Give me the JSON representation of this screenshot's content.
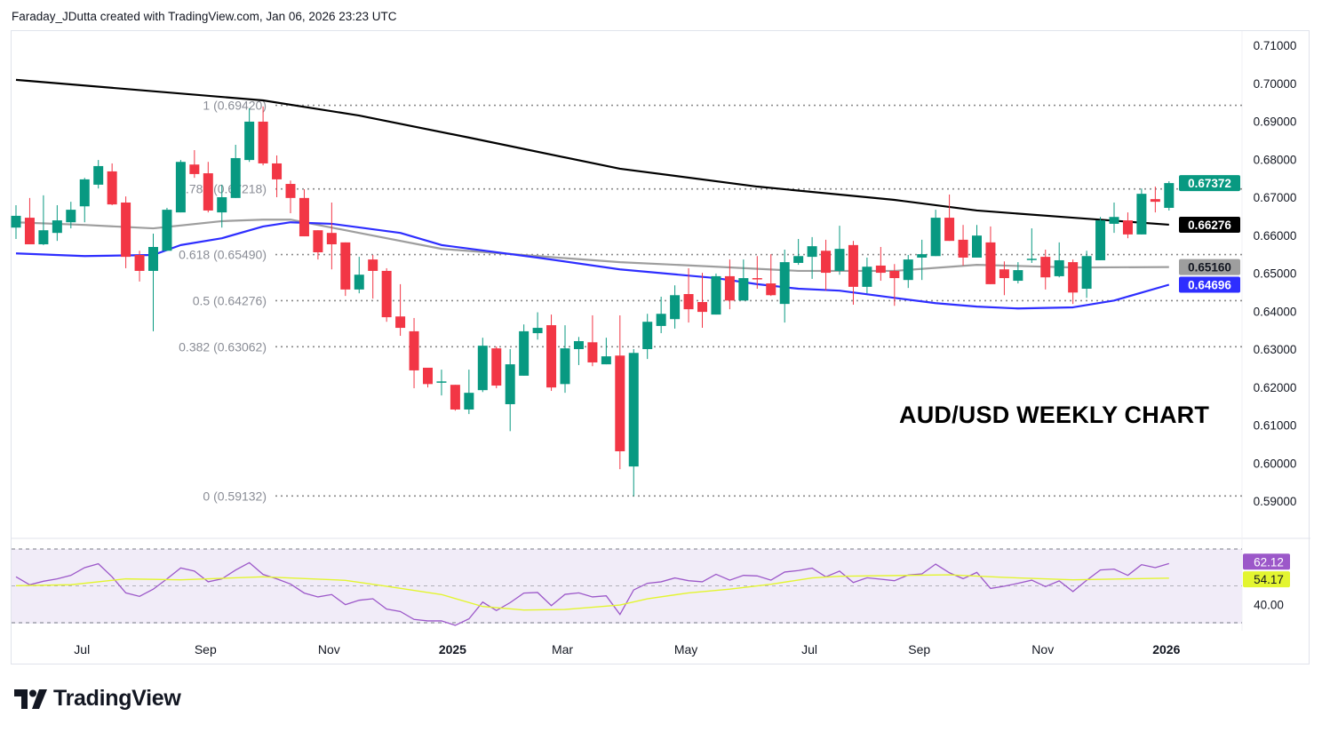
{
  "header": {
    "attribution": "Faraday_JDutta created with TradingView.com, Jan 06, 2026 23:23 UTC"
  },
  "brand": {
    "name": "TradingView"
  },
  "chart_data": {
    "type": "candlestick",
    "title": "AUD/USD WEEKLY CHART",
    "colors": {
      "up": "#089981",
      "down": "#f23645",
      "ma_long": "#000000",
      "ma_mid": "#9e9e9e",
      "ma_short": "#2e2eff",
      "rsi": "#9c58c9",
      "rsi_ma": "#e3f530",
      "rsi_bg": "#f1ecf8"
    },
    "ylim": [
      0.585,
      0.713
    ],
    "y_ticks": [
      "0.71000",
      "0.70000",
      "0.69000",
      "0.68000",
      "0.67000",
      "0.66000",
      "0.65000",
      "0.64000",
      "0.63000",
      "0.62000",
      "0.61000",
      "0.60000",
      "0.59000"
    ],
    "x_ticks": [
      {
        "label": "Jul",
        "date": "2024-07-01",
        "bold": false
      },
      {
        "label": "Sep",
        "date": "2024-09-02",
        "bold": false
      },
      {
        "label": "Nov",
        "date": "2024-11-04",
        "bold": false
      },
      {
        "label": "2025",
        "date": "2025-01-06",
        "bold": true
      },
      {
        "label": "Mar",
        "date": "2025-03-03",
        "bold": false
      },
      {
        "label": "May",
        "date": "2025-05-05",
        "bold": false
      },
      {
        "label": "Jul",
        "date": "2025-07-07",
        "bold": false
      },
      {
        "label": "Sep",
        "date": "2025-09-01",
        "bold": false
      },
      {
        "label": "Nov",
        "date": "2025-11-03",
        "bold": false
      },
      {
        "label": "2026",
        "date": "2026-01-05",
        "bold": true
      }
    ],
    "candles_columns": [
      "date",
      "open",
      "high",
      "low",
      "close"
    ],
    "candles": [
      [
        "2024-05-27",
        0.662,
        0.6679,
        0.659,
        0.6651
      ],
      [
        "2024-06-03",
        0.6646,
        0.6698,
        0.6576,
        0.6576
      ],
      [
        "2024-06-10",
        0.6576,
        0.6705,
        0.6574,
        0.6613
      ],
      [
        "2024-06-17",
        0.6606,
        0.6679,
        0.6585,
        0.6639
      ],
      [
        "2024-06-24",
        0.6634,
        0.6688,
        0.6618,
        0.6667
      ],
      [
        "2024-07-01",
        0.6676,
        0.6751,
        0.6634,
        0.6747
      ],
      [
        "2024-07-08",
        0.6733,
        0.6798,
        0.6723,
        0.6782
      ],
      [
        "2024-07-15",
        0.6768,
        0.6789,
        0.6679,
        0.6681
      ],
      [
        "2024-07-22",
        0.6686,
        0.6702,
        0.6513,
        0.6543
      ],
      [
        "2024-07-29",
        0.6548,
        0.6559,
        0.6478,
        0.6506
      ],
      [
        "2024-08-05",
        0.6506,
        0.6604,
        0.6347,
        0.6569
      ],
      [
        "2024-08-12",
        0.6559,
        0.6672,
        0.6559,
        0.6667
      ],
      [
        "2024-08-19",
        0.666,
        0.6798,
        0.666,
        0.6793
      ],
      [
        "2024-08-26",
        0.6786,
        0.6824,
        0.6751,
        0.6761
      ],
      [
        "2024-09-02",
        0.6763,
        0.6793,
        0.666,
        0.6665
      ],
      [
        "2024-09-09",
        0.666,
        0.6733,
        0.662,
        0.67
      ],
      [
        "2024-09-16",
        0.6698,
        0.6838,
        0.6698,
        0.6803
      ],
      [
        "2024-09-23",
        0.6798,
        0.6934,
        0.6793,
        0.6899
      ],
      [
        "2024-09-30",
        0.6899,
        0.6939,
        0.6784,
        0.6789
      ],
      [
        "2024-10-07",
        0.6789,
        0.681,
        0.67,
        0.6747
      ],
      [
        "2024-10-14",
        0.6735,
        0.6744,
        0.6658,
        0.6698
      ],
      [
        "2024-10-21",
        0.6698,
        0.6721,
        0.6597,
        0.6597
      ],
      [
        "2024-10-28",
        0.6613,
        0.6613,
        0.6536,
        0.6555
      ],
      [
        "2024-11-04",
        0.6606,
        0.6686,
        0.651,
        0.6576
      ],
      [
        "2024-11-11",
        0.6581,
        0.6581,
        0.644,
        0.6457
      ],
      [
        "2024-11-18",
        0.6457,
        0.6543,
        0.6447,
        0.6496
      ],
      [
        "2024-11-25",
        0.6536,
        0.6548,
        0.6433,
        0.6506
      ],
      [
        "2024-12-02",
        0.6506,
        0.6513,
        0.6372,
        0.6384
      ],
      [
        "2024-12-09",
        0.6386,
        0.6471,
        0.6335,
        0.6356
      ],
      [
        "2024-12-16",
        0.6347,
        0.6382,
        0.6197,
        0.6244
      ],
      [
        "2024-12-23",
        0.6251,
        0.6251,
        0.6199,
        0.6208
      ],
      [
        "2024-12-30",
        0.6213,
        0.6246,
        0.6178,
        0.6215
      ],
      [
        "2025-01-06",
        0.6206,
        0.6206,
        0.6138,
        0.6141
      ],
      [
        "2025-01-13",
        0.6141,
        0.6246,
        0.6129,
        0.6185
      ],
      [
        "2025-01-20",
        0.6192,
        0.633,
        0.6187,
        0.6309
      ],
      [
        "2025-01-27",
        0.6302,
        0.6307,
        0.6197,
        0.6204
      ],
      [
        "2025-02-03",
        0.6155,
        0.63,
        0.6084,
        0.626
      ],
      [
        "2025-02-10",
        0.623,
        0.6365,
        0.623,
        0.6347
      ],
      [
        "2025-02-17",
        0.6342,
        0.6397,
        0.6325,
        0.6356
      ],
      [
        "2025-02-24",
        0.6363,
        0.6391,
        0.619,
        0.6199
      ],
      [
        "2025-03-03",
        0.6208,
        0.6363,
        0.6185,
        0.6302
      ],
      [
        "2025-03-10",
        0.63,
        0.6332,
        0.6258,
        0.6321
      ],
      [
        "2025-03-17",
        0.6318,
        0.6389,
        0.6255,
        0.6265
      ],
      [
        "2025-03-24",
        0.626,
        0.633,
        0.626,
        0.6281
      ],
      [
        "2025-03-31",
        0.6283,
        0.6389,
        0.5984,
        0.6031
      ],
      [
        "2025-04-07",
        0.5991,
        0.63,
        0.5913,
        0.629
      ],
      [
        "2025-04-14",
        0.63,
        0.6393,
        0.6274,
        0.6372
      ],
      [
        "2025-04-21",
        0.6361,
        0.6438,
        0.6342,
        0.6393
      ],
      [
        "2025-04-28",
        0.6379,
        0.6468,
        0.6354,
        0.6442
      ],
      [
        "2025-05-05",
        0.6445,
        0.6513,
        0.637,
        0.6405
      ],
      [
        "2025-05-12",
        0.6424,
        0.6501,
        0.6356,
        0.6398
      ],
      [
        "2025-05-19",
        0.6391,
        0.6499,
        0.6391,
        0.6492
      ],
      [
        "2025-05-26",
        0.6492,
        0.6536,
        0.6405,
        0.6428
      ],
      [
        "2025-06-02",
        0.6428,
        0.6536,
        0.6428,
        0.6487
      ],
      [
        "2025-06-09",
        0.6487,
        0.6545,
        0.6459,
        0.6485
      ],
      [
        "2025-06-16",
        0.6473,
        0.655,
        0.644,
        0.6442
      ],
      [
        "2025-06-23",
        0.6419,
        0.6562,
        0.637,
        0.6529
      ],
      [
        "2025-06-30",
        0.6527,
        0.659,
        0.6522,
        0.6545
      ],
      [
        "2025-07-07",
        0.6543,
        0.6595,
        0.6485,
        0.6571
      ],
      [
        "2025-07-14",
        0.6559,
        0.6588,
        0.6454,
        0.6501
      ],
      [
        "2025-07-21",
        0.6506,
        0.6625,
        0.6496,
        0.6564
      ],
      [
        "2025-07-28",
        0.6574,
        0.6585,
        0.6417,
        0.6464
      ],
      [
        "2025-08-04",
        0.6464,
        0.6541,
        0.6447,
        0.6517
      ],
      [
        "2025-08-11",
        0.652,
        0.6569,
        0.648,
        0.6501
      ],
      [
        "2025-08-18",
        0.6506,
        0.6524,
        0.6414,
        0.6487
      ],
      [
        "2025-08-25",
        0.6482,
        0.6548,
        0.6461,
        0.6536
      ],
      [
        "2025-09-01",
        0.6541,
        0.6588,
        0.6482,
        0.655
      ],
      [
        "2025-09-08",
        0.6545,
        0.6667,
        0.6545,
        0.6646
      ],
      [
        "2025-09-15",
        0.6646,
        0.6707,
        0.6585,
        0.6585
      ],
      [
        "2025-09-22",
        0.6588,
        0.6627,
        0.652,
        0.6541
      ],
      [
        "2025-09-29",
        0.6541,
        0.6627,
        0.6541,
        0.6599
      ],
      [
        "2025-10-06",
        0.6581,
        0.6623,
        0.6471,
        0.6471
      ],
      [
        "2025-10-13",
        0.651,
        0.6531,
        0.6442,
        0.6487
      ],
      [
        "2025-10-20",
        0.648,
        0.6529,
        0.6473,
        0.6508
      ],
      [
        "2025-10-27",
        0.6536,
        0.6618,
        0.6527,
        0.6538
      ],
      [
        "2025-11-03",
        0.6543,
        0.6562,
        0.6457,
        0.6489
      ],
      [
        "2025-11-10",
        0.6492,
        0.6581,
        0.6489,
        0.6534
      ],
      [
        "2025-11-17",
        0.6529,
        0.6536,
        0.6419,
        0.6449
      ],
      [
        "2025-11-24",
        0.6459,
        0.6559,
        0.6435,
        0.6545
      ],
      [
        "2025-12-01",
        0.6534,
        0.6648,
        0.6534,
        0.6639
      ],
      [
        "2025-12-08",
        0.663,
        0.6686,
        0.6606,
        0.6648
      ],
      [
        "2025-12-15",
        0.6639,
        0.666,
        0.6592,
        0.6602
      ],
      [
        "2025-12-22",
        0.6602,
        0.6723,
        0.6602,
        0.6709
      ],
      [
        "2025-12-29",
        0.6695,
        0.6728,
        0.666,
        0.6688
      ],
      [
        "2026-01-05",
        0.6672,
        0.6742,
        0.6665,
        0.67372
      ]
    ],
    "moving_averages": [
      {
        "key": "ma_long",
        "last_label": "0.66276",
        "points": [
          [
            "2024-05-27",
            0.7009
          ],
          [
            "2024-09-30",
            0.6955
          ],
          [
            "2024-11-18",
            0.6915
          ],
          [
            "2025-01-13",
            0.6857
          ],
          [
            "2025-03-31",
            0.6775
          ],
          [
            "2025-06-09",
            0.6728
          ],
          [
            "2025-08-18",
            0.6693
          ],
          [
            "2025-09-29",
            0.6665
          ],
          [
            "2025-11-17",
            0.6646
          ],
          [
            "2026-01-05",
            0.66276
          ]
        ]
      },
      {
        "key": "ma_mid",
        "last_label": "0.65160",
        "points": [
          [
            "2024-05-27",
            0.6634
          ],
          [
            "2024-07-01",
            0.6627
          ],
          [
            "2024-08-05",
            0.6618
          ],
          [
            "2024-09-09",
            0.6637
          ],
          [
            "2024-09-30",
            0.6641
          ],
          [
            "2024-10-14",
            0.6641
          ],
          [
            "2024-11-18",
            0.6606
          ],
          [
            "2024-12-30",
            0.6564
          ],
          [
            "2025-02-17",
            0.6545
          ],
          [
            "2025-03-31",
            0.6529
          ],
          [
            "2025-05-19",
            0.6517
          ],
          [
            "2025-06-30",
            0.6506
          ],
          [
            "2025-08-18",
            0.6506
          ],
          [
            "2025-09-29",
            0.6522
          ],
          [
            "2025-11-17",
            0.6515
          ],
          [
            "2026-01-05",
            0.6516
          ]
        ]
      },
      {
        "key": "ma_short",
        "last_label": "0.64696",
        "points": [
          [
            "2024-05-27",
            0.6552
          ],
          [
            "2024-07-01",
            0.6545
          ],
          [
            "2024-08-05",
            0.6548
          ],
          [
            "2024-08-19",
            0.6574
          ],
          [
            "2024-09-09",
            0.6592
          ],
          [
            "2024-09-30",
            0.6623
          ],
          [
            "2024-10-14",
            0.6634
          ],
          [
            "2024-11-04",
            0.663
          ],
          [
            "2024-12-09",
            0.6606
          ],
          [
            "2024-12-30",
            0.6574
          ],
          [
            "2025-02-17",
            0.6541
          ],
          [
            "2025-03-31",
            0.651
          ],
          [
            "2025-05-19",
            0.6487
          ],
          [
            "2025-06-09",
            0.6471
          ],
          [
            "2025-06-30",
            0.6459
          ],
          [
            "2025-07-21",
            0.6454
          ],
          [
            "2025-08-18",
            0.6435
          ],
          [
            "2025-09-08",
            0.6421
          ],
          [
            "2025-09-29",
            0.6412
          ],
          [
            "2025-10-20",
            0.6407
          ],
          [
            "2025-11-17",
            0.641
          ],
          [
            "2025-12-08",
            0.6428
          ],
          [
            "2026-01-05",
            0.64696
          ]
        ]
      }
    ],
    "last_price_label": "0.67372",
    "fibonacci": [
      {
        "label": "1 (0.69420)",
        "price": 0.6942
      },
      {
        "label": "0.786 (0.67218)",
        "price": 0.67218
      },
      {
        "label": "0.618 (0.65490)",
        "price": 0.6549
      },
      {
        "label": "0.5 (0.64276)",
        "price": 0.64276
      },
      {
        "label": "0.382 (0.63062)",
        "price": 0.63062
      },
      {
        "label": "0 (0.59132)",
        "price": 0.59132
      }
    ],
    "rsi": {
      "ylim": [
        30,
        70
      ],
      "levels": [
        70,
        50,
        30
      ],
      "tick_label": "40.00",
      "last_label": "62.12",
      "ma_last_label": "54.17",
      "values": [
        54.9,
        50.6,
        52.5,
        53.8,
        55.7,
        59.9,
        62.0,
        54.9,
        46.2,
        44.3,
        48.2,
        53.8,
        59.7,
        58.0,
        52.2,
        53.8,
        58.6,
        62.6,
        56.2,
        53.8,
        51.0,
        46.1,
        44.0,
        45.3,
        39.8,
        42.2,
        43.0,
        37.4,
        36.1,
        31.8,
        31.0,
        31.0,
        28.6,
        32.1,
        41.2,
        36.6,
        40.9,
        46.1,
        46.4,
        39.3,
        45.4,
        46.2,
        44.0,
        44.6,
        34.5,
        47.8,
        51.4,
        52.2,
        54.3,
        52.8,
        52.2,
        56.3,
        53.1,
        55.7,
        55.4,
        53.1,
        57.5,
        58.3,
        59.6,
        54.9,
        58.0,
        51.8,
        54.4,
        53.6,
        52.8,
        55.9,
        56.5,
        61.8,
        57.1,
        53.9,
        57.3,
        48.6,
        49.8,
        51.4,
        53.1,
        49.6,
        52.7,
        46.9,
        53.0,
        58.6,
        59.1,
        55.7,
        61.5,
        59.9,
        62.12
      ],
      "ma_points": [
        [
          "2024-05-27",
          50.1
        ],
        [
          "2024-06-24",
          50.6
        ],
        [
          "2024-07-22",
          53.8
        ],
        [
          "2024-08-19",
          53.3
        ],
        [
          "2024-09-30",
          54.9
        ],
        [
          "2024-11-11",
          53.0
        ],
        [
          "2024-12-02",
          49.8
        ],
        [
          "2024-12-30",
          45.3
        ],
        [
          "2025-01-20",
          38.8
        ],
        [
          "2025-02-10",
          36.9
        ],
        [
          "2025-03-03",
          37.2
        ],
        [
          "2025-03-31",
          39.6
        ],
        [
          "2025-04-14",
          43.0
        ],
        [
          "2025-05-05",
          46.2
        ],
        [
          "2025-05-26",
          48.2
        ],
        [
          "2025-06-16",
          50.9
        ],
        [
          "2025-07-07",
          54.3
        ],
        [
          "2025-07-21",
          55.2
        ],
        [
          "2025-09-15",
          56.0
        ],
        [
          "2025-10-13",
          54.6
        ],
        [
          "2025-11-17",
          53.3
        ],
        [
          "2026-01-05",
          54.17
        ]
      ]
    }
  }
}
